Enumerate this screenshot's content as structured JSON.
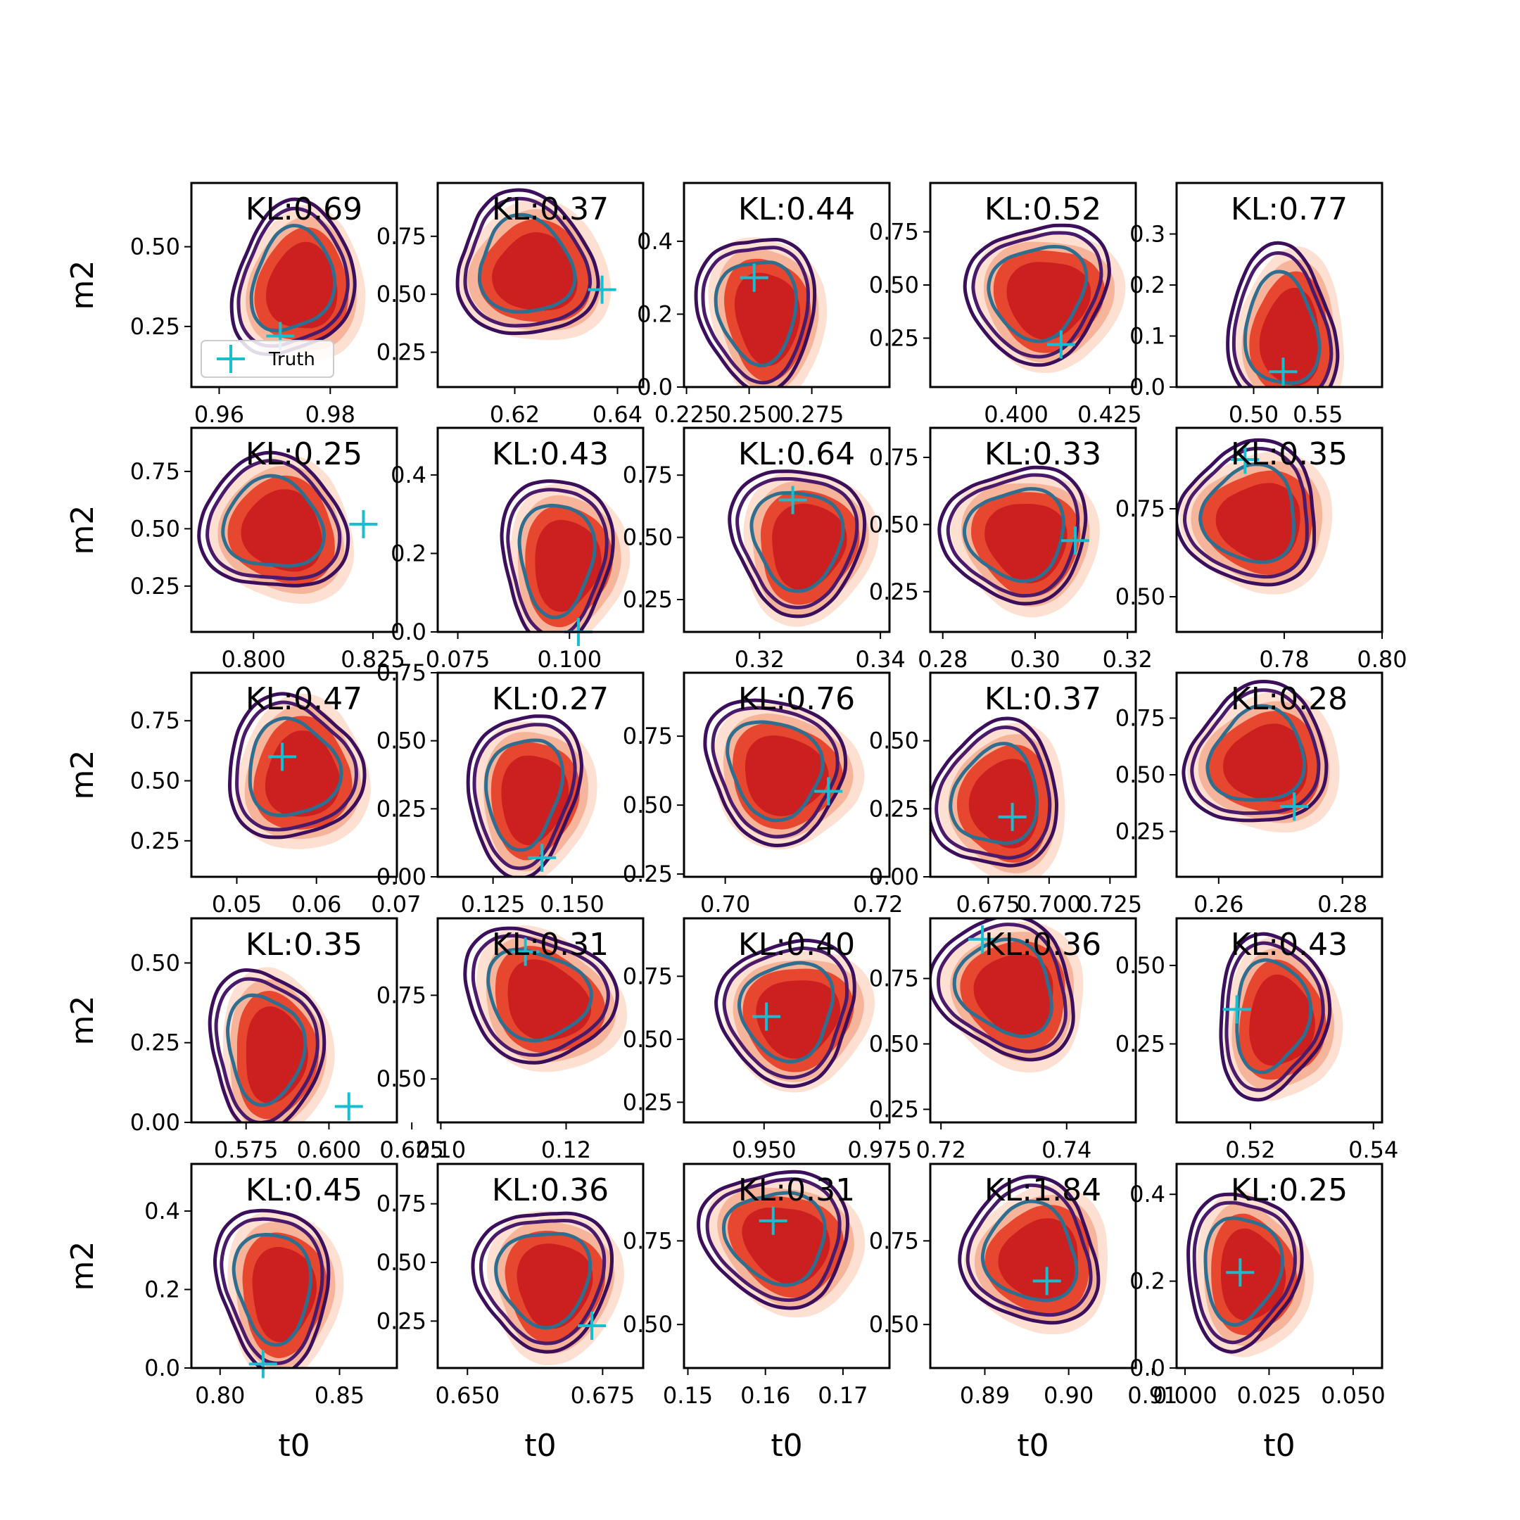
{
  "chart_data": {
    "type": "contour-grid",
    "rows": 5,
    "cols": 5,
    "xlabel": "t0",
    "ylabel": "m2",
    "legend": {
      "label": "Truth",
      "marker": "+",
      "color": "#17becf",
      "placement": "lower-left of first panel"
    },
    "colors": {
      "fill_outer": "#fde0d2",
      "fill_mid": "#f6b49b",
      "fill_inner": "#e8472f",
      "fill_core": "#cc1f1f",
      "contour_outer": "#3b0f5c",
      "contour_mid": "#4a1a6b",
      "contour_inner": "#2f6e8e",
      "truth": "#17becf"
    },
    "panels": [
      {
        "kl": "KL:0.69",
        "xticks": [
          0.96,
          0.98
        ],
        "yticks": [
          0.25,
          0.5
        ],
        "xlim": [
          0.955,
          0.992
        ],
        "ylim": [
          0.06,
          0.7
        ],
        "truth": [
          0.971,
          0.22
        ],
        "tilt": -0.15,
        "cx": 0.974,
        "cy": 0.38
      },
      {
        "kl": "KL:0.37",
        "xticks": [
          0.62,
          0.64
        ],
        "yticks": [
          0.25,
          0.5,
          0.75
        ],
        "xlim": [
          0.605,
          0.645
        ],
        "ylim": [
          0.1,
          0.98
        ],
        "truth": [
          0.637,
          0.52
        ],
        "tilt": -0.75,
        "cx": 0.623,
        "cy": 0.6
      },
      {
        "kl": "KL:0.44",
        "xticks": [
          0.225,
          0.25,
          0.275
        ],
        "yticks": [
          0.0,
          0.2,
          0.4
        ],
        "xlim": [
          0.224,
          0.306
        ],
        "ylim": [
          0.0,
          0.56
        ],
        "truth": [
          0.252,
          0.3
        ],
        "tilt": 0.05,
        "cx": 0.255,
        "cy": 0.2
      },
      {
        "kl": "KL:0.52",
        "xticks": [
          0.4,
          0.425
        ],
        "yticks": [
          0.25,
          0.5,
          0.75
        ],
        "xlim": [
          0.377,
          0.432
        ],
        "ylim": [
          0.02,
          0.98
        ],
        "truth": [
          0.412,
          0.22
        ],
        "tilt": -0.55,
        "cx": 0.407,
        "cy": 0.45
      },
      {
        "kl": "KL:0.77",
        "xticks": [
          0.5,
          0.55
        ],
        "yticks": [
          0.0,
          0.1,
          0.2,
          0.3
        ],
        "xlim": [
          0.44,
          0.6
        ],
        "ylim": [
          0.0,
          0.4
        ],
        "truth": [
          0.523,
          0.03
        ],
        "tilt": 0.0,
        "cx": 0.525,
        "cy": 0.1
      },
      {
        "kl": "KL:0.25",
        "xticks": [
          0.8,
          0.825
        ],
        "yticks": [
          0.25,
          0.5,
          0.75
        ],
        "xlim": [
          0.787,
          0.83
        ],
        "ylim": [
          0.05,
          0.94
        ],
        "truth": [
          0.823,
          0.52
        ],
        "tilt": -0.6,
        "cx": 0.805,
        "cy": 0.5
      },
      {
        "kl": "KL:0.43",
        "xticks": [
          0.075,
          0.1
        ],
        "yticks": [
          0.0,
          0.2,
          0.4
        ],
        "xlim": [
          0.0705,
          0.1165
        ],
        "ylim": [
          0.0,
          0.52
        ],
        "truth": [
          0.102,
          0.0
        ],
        "tilt": 0.1,
        "cx": 0.098,
        "cy": 0.18
      },
      {
        "kl": "KL:0.64",
        "xticks": [
          0.32,
          0.34
        ],
        "yticks": [
          0.25,
          0.5,
          0.75
        ],
        "xlim": [
          0.3075,
          0.3415
        ],
        "ylim": [
          0.12,
          0.94
        ],
        "truth": [
          0.3255,
          0.65
        ],
        "tilt": -0.45,
        "cx": 0.327,
        "cy": 0.48
      },
      {
        "kl": "KL:0.33",
        "xticks": [
          0.28,
          0.3,
          0.32
        ],
        "yticks": [
          0.25,
          0.5,
          0.75
        ],
        "xlim": [
          0.2773,
          0.3218
        ],
        "ylim": [
          0.1,
          0.86
        ],
        "truth": [
          0.3087,
          0.44
        ],
        "tilt": -0.55,
        "cx": 0.297,
        "cy": 0.45
      },
      {
        "kl": "KL:0.35",
        "xticks": [
          0.78,
          0.8
        ],
        "yticks": [
          0.5,
          0.75
        ],
        "xlim": [
          0.758,
          0.8
        ],
        "ylim": [
          0.4,
          0.98
        ],
        "truth": [
          0.772,
          0.89
        ],
        "tilt": -0.7,
        "cx": 0.774,
        "cy": 0.72
      },
      {
        "kl": "KL:0.47",
        "xticks": [
          0.05,
          0.06,
          0.07
        ],
        "yticks": [
          0.25,
          0.5,
          0.75
        ],
        "xlim": [
          0.0443,
          0.0701
        ],
        "ylim": [
          0.1,
          0.95
        ],
        "truth": [
          0.0557,
          0.6
        ],
        "tilt": -0.4,
        "cx": 0.0575,
        "cy": 0.53
      },
      {
        "kl": "KL:0.27",
        "xticks": [
          0.125,
          0.15
        ],
        "yticks": [
          0.0,
          0.25,
          0.5,
          0.75
        ],
        "xlim": [
          0.1075,
          0.1725
        ],
        "ylim": [
          0.0,
          0.75
        ],
        "truth": [
          0.1405,
          0.07
        ],
        "tilt": -0.05,
        "cx": 0.136,
        "cy": 0.3
      },
      {
        "kl": "KL:0.76",
        "xticks": [
          0.7,
          0.72
        ],
        "yticks": [
          0.25,
          0.5,
          0.75
        ],
        "xlim": [
          0.6946,
          0.7215
        ],
        "ylim": [
          0.24,
          0.98
        ],
        "truth": [
          0.7135,
          0.55
        ],
        "tilt": -0.8,
        "cx": 0.707,
        "cy": 0.62
      },
      {
        "kl": "KL:0.37",
        "xticks": [
          0.675,
          0.7,
          0.725
        ],
        "yticks": [
          0.0,
          0.25,
          0.5
        ],
        "xlim": [
          0.6512,
          0.7356
        ],
        "ylim": [
          0.0,
          0.75
        ],
        "truth": [
          0.6849,
          0.22
        ],
        "tilt": -0.2,
        "cx": 0.68,
        "cy": 0.28
      },
      {
        "kl": "KL:0.28",
        "xticks": [
          0.26,
          0.28
        ],
        "yticks": [
          0.25,
          0.5,
          0.75
        ],
        "xlim": [
          0.2532,
          0.2864
        ],
        "ylim": [
          0.05,
          0.95
        ],
        "truth": [
          0.2722,
          0.36
        ],
        "tilt": -0.6,
        "cx": 0.267,
        "cy": 0.56
      },
      {
        "kl": "KL:0.35",
        "xticks": [
          0.575,
          0.6,
          0.625
        ],
        "yticks": [
          0.0,
          0.25,
          0.5
        ],
        "xlim": [
          0.5585,
          0.6205
        ],
        "ylim": [
          0.0,
          0.64
        ],
        "truth": [
          0.606,
          0.05
        ],
        "tilt": -0.05,
        "cx": 0.582,
        "cy": 0.22
      },
      {
        "kl": "KL:0.31",
        "xticks": [
          0.1,
          0.12
        ],
        "yticks": [
          0.5,
          0.75
        ],
        "xlim": [
          0.0995,
          0.1323
        ],
        "ylim": [
          0.37,
          0.98
        ],
        "truth": [
          0.1135,
          0.88
        ],
        "tilt": -0.75,
        "cx": 0.116,
        "cy": 0.74
      },
      {
        "kl": "KL:0.40",
        "xticks": [
          0.95,
          0.975
        ],
        "yticks": [
          0.25,
          0.5,
          0.75
        ],
        "xlim": [
          0.9327,
          0.9771
        ],
        "ylim": [
          0.17,
          0.98
        ],
        "truth": [
          0.9505,
          0.59
        ],
        "tilt": -0.6,
        "cx": 0.956,
        "cy": 0.6
      },
      {
        "kl": "KL:0.36",
        "xticks": [
          0.72,
          0.74
        ],
        "yticks": [
          0.25,
          0.5,
          0.75
        ],
        "xlim": [
          0.7183,
          0.751
        ],
        "ylim": [
          0.2,
          0.98
        ],
        "truth": [
          0.7266,
          0.9
        ],
        "tilt": -0.7,
        "cx": 0.731,
        "cy": 0.7
      },
      {
        "kl": "KL:0.43",
        "xticks": [
          0.52,
          0.54
        ],
        "yticks": [
          0.25,
          0.5
        ],
        "xlim": [
          0.508,
          0.5414
        ],
        "ylim": [
          0.0,
          0.65
        ],
        "truth": [
          0.5178,
          0.36
        ],
        "tilt": 0.0,
        "cx": 0.524,
        "cy": 0.33
      },
      {
        "kl": "KL:0.45",
        "xticks": [
          0.8,
          0.85
        ],
        "yticks": [
          0.0,
          0.2,
          0.4
        ],
        "xlim": [
          0.788,
          0.874
        ],
        "ylim": [
          0.0,
          0.52
        ],
        "truth": [
          0.818,
          0.01
        ],
        "tilt": 0.1,
        "cx": 0.824,
        "cy": 0.2
      },
      {
        "kl": "KL:0.36",
        "xticks": [
          0.65,
          0.675
        ],
        "yticks": [
          0.25,
          0.5,
          0.75
        ],
        "xlim": [
          0.6445,
          0.6825
        ],
        "ylim": [
          0.05,
          0.92
        ],
        "truth": [
          0.673,
          0.23
        ],
        "tilt": -0.4,
        "cx": 0.665,
        "cy": 0.42
      },
      {
        "kl": "KL:0.31",
        "xticks": [
          0.15,
          0.16,
          0.17
        ],
        "yticks": [
          0.5,
          0.75
        ],
        "xlim": [
          0.1495,
          0.176
        ],
        "ylim": [
          0.37,
          0.98
        ],
        "truth": [
          0.161,
          0.81
        ],
        "tilt": -0.8,
        "cx": 0.162,
        "cy": 0.75
      },
      {
        "kl": "KL:1.84",
        "xticks": [
          0.89,
          0.9,
          0.91
        ],
        "yticks": [
          0.5,
          0.75
        ],
        "xlim": [
          0.8835,
          0.908
        ],
        "ylim": [
          0.37,
          0.98
        ],
        "truth": [
          0.8974,
          0.63
        ],
        "tilt": -0.65,
        "cx": 0.896,
        "cy": 0.7
      },
      {
        "kl": "KL:0.25",
        "xticks": [
          0.0,
          0.025,
          0.05
        ],
        "yticks": [
          0.0,
          0.2,
          0.4
        ],
        "xlim": [
          -0.0025,
          0.0586
        ],
        "ylim": [
          0.0,
          0.47
        ],
        "truth": [
          0.0164,
          0.22
        ],
        "tilt": 0.0,
        "cx": 0.018,
        "cy": 0.22
      }
    ]
  }
}
